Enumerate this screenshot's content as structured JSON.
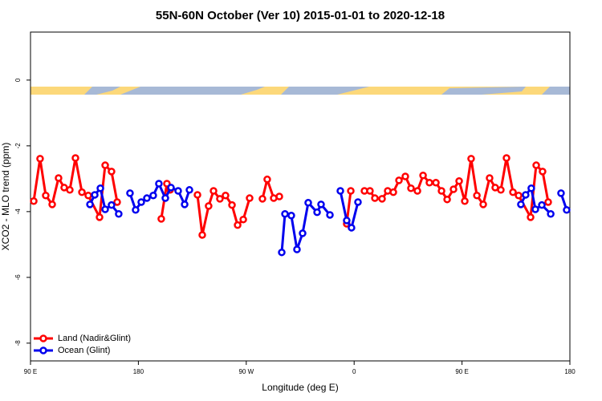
{
  "chart_data": {
    "type": "line",
    "title": "55N-60N October (Ver 10)   2015-01-01 to 2020-12-18",
    "x_label": "Longitude (deg E)",
    "y_label": "XCO2 - MLO trend (ppm)",
    "xlim": [
      90,
      540
    ],
    "ylim": [
      -8.54,
      1.46
    ],
    "xticks": [
      {
        "value": 90,
        "label": "90 E"
      },
      180,
      {
        "value": 270,
        "label": "90 W"
      },
      {
        "value": 360,
        "label": "0"
      },
      {
        "value": 450,
        "label": "90 E"
      },
      {
        "value": 540,
        "label": "180"
      }
    ],
    "yticks": [
      0,
      -2,
      -4,
      -6,
      -8
    ],
    "legend": "bottom-left",
    "series": [
      {
        "name": "Land (Nadir&Glint)",
        "color": "#ff0000",
        "x": [
          92.7,
          98.0,
          102.7,
          108.1,
          113.4,
          118.1,
          122.8,
          127.5,
          132.9,
          138.2,
          147.6,
          152.3,
          157.6,
          162.3,
          null,
          199.1,
          203.8,
          206.5,
          null,
          229.3,
          233.3,
          238.6,
          242.7,
          248.0,
          252.7,
          258.1,
          262.8,
          267.5,
          272.8,
          null,
          283.5,
          287.5,
          292.9,
          297.6,
          null,
          353.8,
          357.2,
          null,
          368.6,
          373.2,
          377.3,
          383.3,
          388.0,
          392.7,
          397.4,
          402.7,
          407.4,
          412.8,
          417.5,
          422.8,
          428.2,
          432.9,
          437.6,
          442.9,
          447.6,
          452.3,
          457.6,
          462.4,
          467.7,
          473.0,
          477.7,
          482.4,
          487.1,
          492.5,
          497.2,
          507.2,
          511.9,
          517.2,
          521.9
        ],
        "values": [
          -3.68,
          -2.39,
          -3.51,
          -3.78,
          -2.98,
          -3.27,
          -3.34,
          -2.37,
          -3.41,
          -3.51,
          -4.17,
          -2.59,
          -2.78,
          -3.71,
          null,
          -4.22,
          -3.15,
          -3.34,
          null,
          -3.49,
          -4.71,
          -3.83,
          -3.37,
          -3.61,
          -3.51,
          -3.8,
          -4.41,
          -4.24,
          -3.59,
          null,
          -3.61,
          -3.02,
          -3.59,
          -3.54,
          null,
          -4.37,
          -3.37,
          null,
          -3.37,
          -3.37,
          -3.59,
          -3.61,
          -3.37,
          -3.41,
          -3.05,
          -2.93,
          -3.29,
          -3.37,
          -2.9,
          -3.12,
          -3.12,
          -3.37,
          -3.63,
          -3.32,
          -3.07,
          -3.68,
          -2.39,
          -3.51,
          -3.78,
          -2.98,
          -3.27,
          -3.34,
          -2.37,
          -3.41,
          -3.51,
          -4.17,
          -2.59,
          -2.78,
          -3.71
        ]
      },
      {
        "name": "Ocean (Glint)",
        "color": "#0000ee",
        "x": [
          139.6,
          143.6,
          148.3,
          152.3,
          157.6,
          163.6,
          null,
          173.0,
          177.7,
          182.4,
          187.1,
          192.4,
          197.1,
          202.5,
          207.2,
          213.2,
          218.6,
          222.6,
          null,
          299.6,
          302.3,
          307.6,
          312.3,
          317.0,
          321.7,
          329.1,
          332.4,
          339.8,
          null,
          348.5,
          353.8,
          357.8,
          363.2,
          null,
          499.1,
          503.1,
          507.8,
          511.2,
          516.6,
          524.0,
          null,
          532.6,
          537.3
        ],
        "values": [
          -3.78,
          -3.49,
          -3.29,
          -3.93,
          -3.8,
          -4.07,
          null,
          -3.44,
          -3.95,
          -3.71,
          -3.59,
          -3.51,
          -3.15,
          -3.59,
          -3.27,
          -3.37,
          -3.78,
          -3.34,
          null,
          -5.24,
          -4.07,
          -4.12,
          -5.15,
          -4.66,
          -3.73,
          -4.02,
          -3.78,
          -4.1,
          null,
          -3.37,
          -4.27,
          -4.49,
          -3.71,
          null,
          -3.78,
          -3.49,
          -3.29,
          -3.93,
          -3.8,
          -4.07,
          null,
          -3.44,
          -3.95
        ]
      }
    ]
  }
}
